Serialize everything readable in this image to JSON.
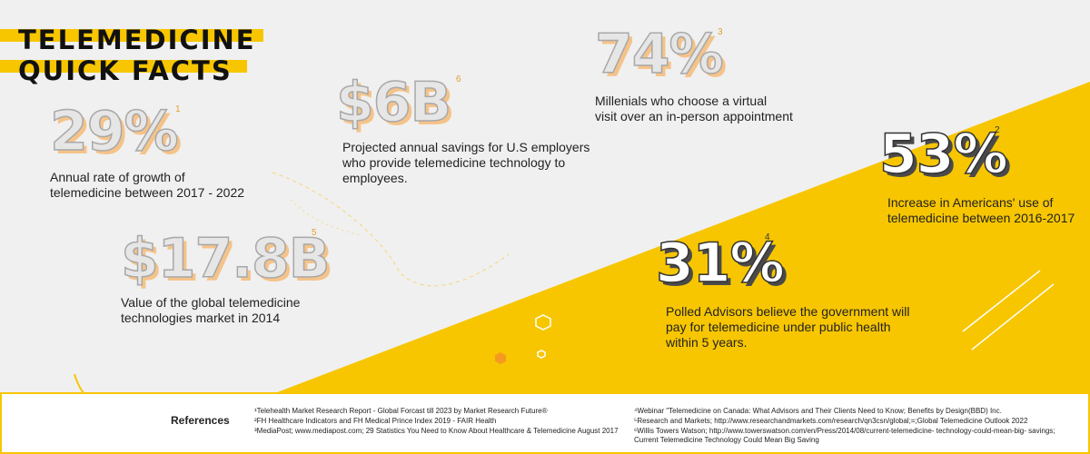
{
  "title": {
    "line1": "TELEMEDICINE",
    "line2": "QUICK FACTS"
  },
  "colors": {
    "accent": "#f7c600",
    "background": "#f0f0f0",
    "text": "#222222"
  },
  "stats": [
    {
      "id": "growth",
      "value": "29%",
      "ref": "1",
      "description": [
        "Annual rate of growth of",
        "telemedicine between 2017 - 2022"
      ]
    },
    {
      "id": "market",
      "value": "$17.8B",
      "ref": "5",
      "description": [
        "Value of the global telemedicine",
        "technologies market in 2014"
      ]
    },
    {
      "id": "savings",
      "value": "$6B",
      "ref": "6",
      "description": [
        "Projected annual savings for U.S employers",
        "who provide telemedicine technology to",
        "employees."
      ]
    },
    {
      "id": "millenials",
      "value": "74%",
      "ref": "3",
      "description": [
        "Millenials who choose a virtual",
        "visit over an in-person appointment"
      ]
    },
    {
      "id": "increase",
      "value": "53%",
      "ref": "2",
      "description": [
        "Increase in Americans' use of",
        "telemedicine between 2016-2017"
      ]
    },
    {
      "id": "advisors",
      "value": "31%",
      "ref": "4",
      "description": [
        "Polled Advisors believe the government will",
        "pay for telemedicine under public health",
        "within 5 years."
      ]
    }
  ],
  "references": {
    "label": "References",
    "left": [
      "¹Telehealth Market Research Report - Global Forcast till 2023 by Market Research Future®",
      "²FH Healthcare Indicators and FH Medical Prince Index 2019 - FAIR Health",
      "³MediaPost; www.mediapost.com; 29 Statistics You Need to Know About Healthcare & Telemedicine August 2017"
    ],
    "right": [
      "⁴Webinar \"Telemedicine on Canada: What Advisors and Their Clients Need to Know; Benefits by Design(BBD) Inc.",
      "⁵Research and Markets; http://www.researchandmarkets.com/research/qn3csn/global;=;Global Telemedicine Outlook 2022",
      "⁶Willis Towers Watson; http://www.towerswatson.com/en/Press/2014/08/current-telemedicine- technology-could-mean-big- savings;",
      " Current Telemedicine Technology Could Mean Big Saving"
    ]
  }
}
